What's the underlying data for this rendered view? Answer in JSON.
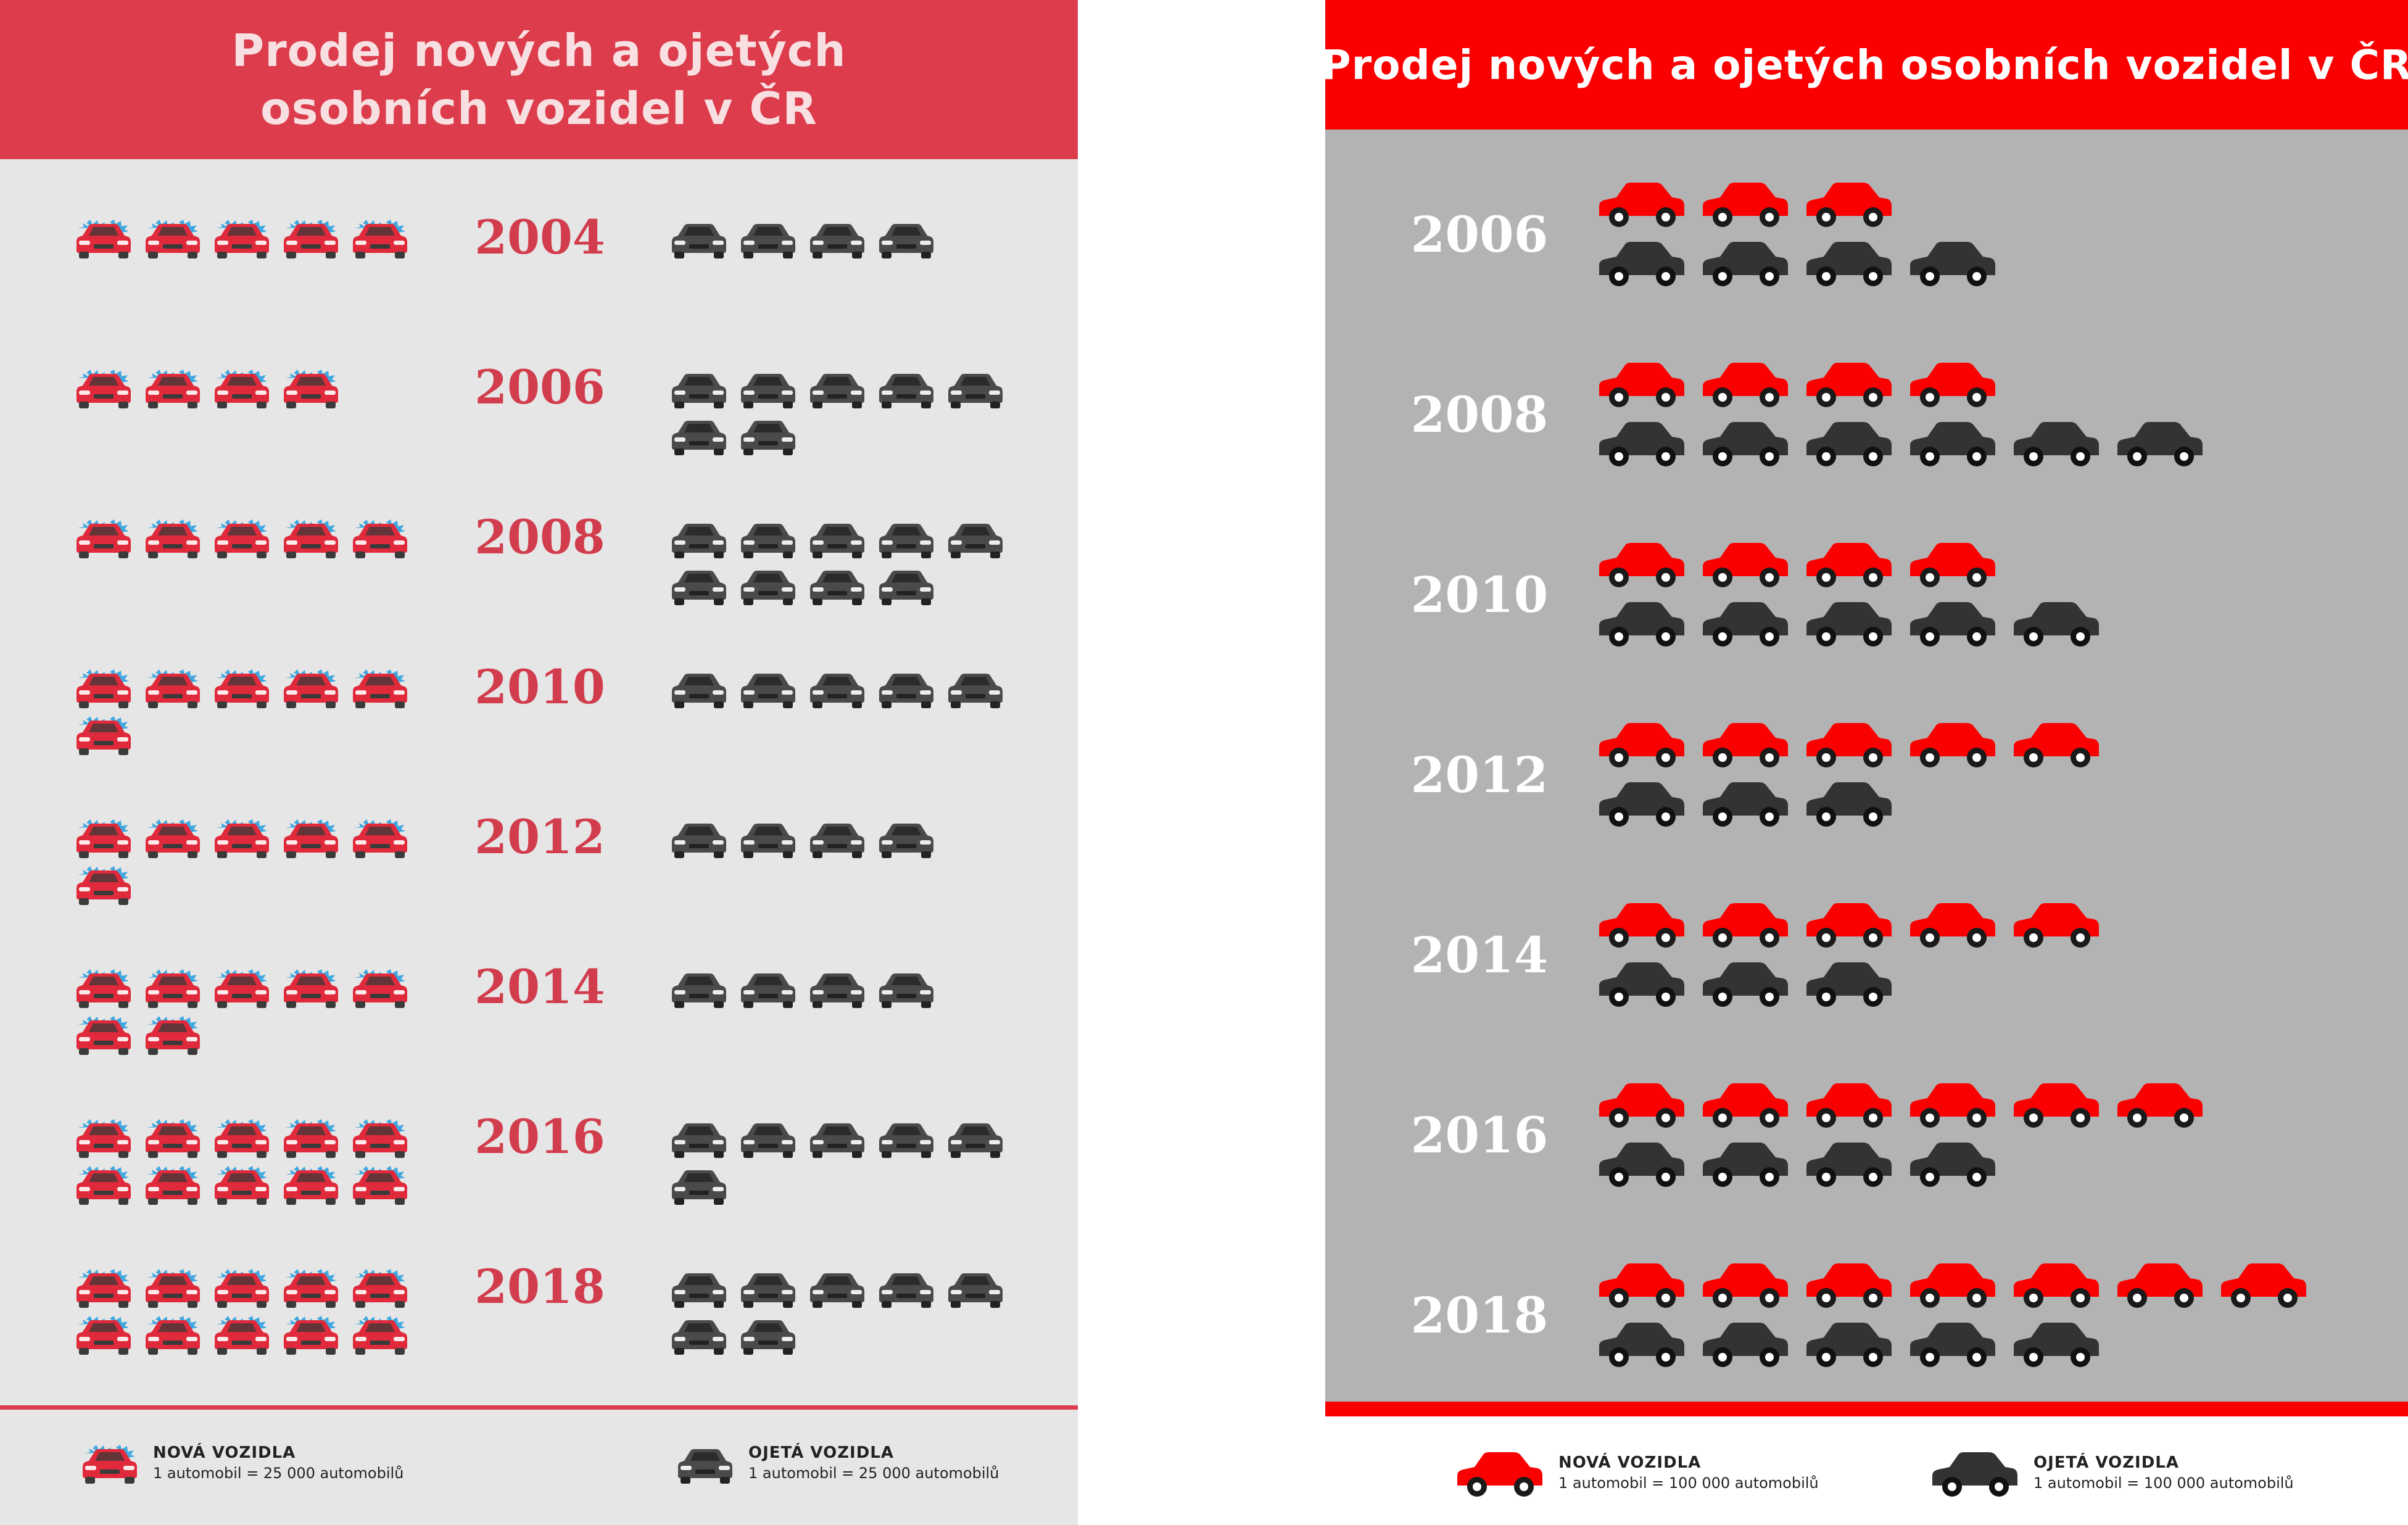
{
  "chart_data": [
    {
      "type": "pictograph",
      "title": "Prodej nových a ojetých osobních vozidel v ČR",
      "categories": [
        "2004",
        "2006",
        "2008",
        "2010",
        "2012",
        "2014",
        "2016",
        "2018"
      ],
      "series": [
        {
          "name": "NOVÁ VOZIDLA",
          "color": "#e02a3b",
          "icon": "new-car-icon",
          "values": [
            5,
            4,
            5,
            6,
            6,
            7,
            10,
            10
          ]
        },
        {
          "name": "OJETÁ VOZIDLA",
          "color": "#4a4a4a",
          "icon": "used-car-icon",
          "values": [
            4,
            7,
            9,
            5,
            4,
            4,
            6,
            7
          ]
        }
      ],
      "legend": [
        {
          "title": "NOVÁ VOZIDLA",
          "note": "1 automobil = 25 000 automobilů"
        },
        {
          "title": "OJETÁ VOZIDLA",
          "note": "1 automobil = 25 000 automobilů"
        }
      ],
      "legend_position": "bottom"
    },
    {
      "type": "pictograph",
      "title": "Prodej nových a ojetých osobních vozidel v ČR",
      "categories": [
        "2006",
        "2008",
        "2010",
        "2012",
        "2014",
        "2016",
        "2018"
      ],
      "series": [
        {
          "name": "NOVÁ VOZIDLA",
          "color": "#fa0000",
          "icon": "red-car-icon",
          "values": [
            3,
            4,
            4,
            5,
            5,
            6,
            7
          ]
        },
        {
          "name": "OJETÁ VOZIDLA",
          "color": "#333333",
          "icon": "black-car-icon",
          "values": [
            4,
            6,
            5,
            3,
            3,
            4,
            5
          ]
        }
      ],
      "legend": [
        {
          "title": "NOVÁ VOZIDLA",
          "note": "1 automobil = 100 000 automobilů"
        },
        {
          "title": "OJETÁ VOZIDLA",
          "note": "1 automobil = 100 000 automobilů"
        }
      ],
      "legend_position": "bottom"
    }
  ]
}
